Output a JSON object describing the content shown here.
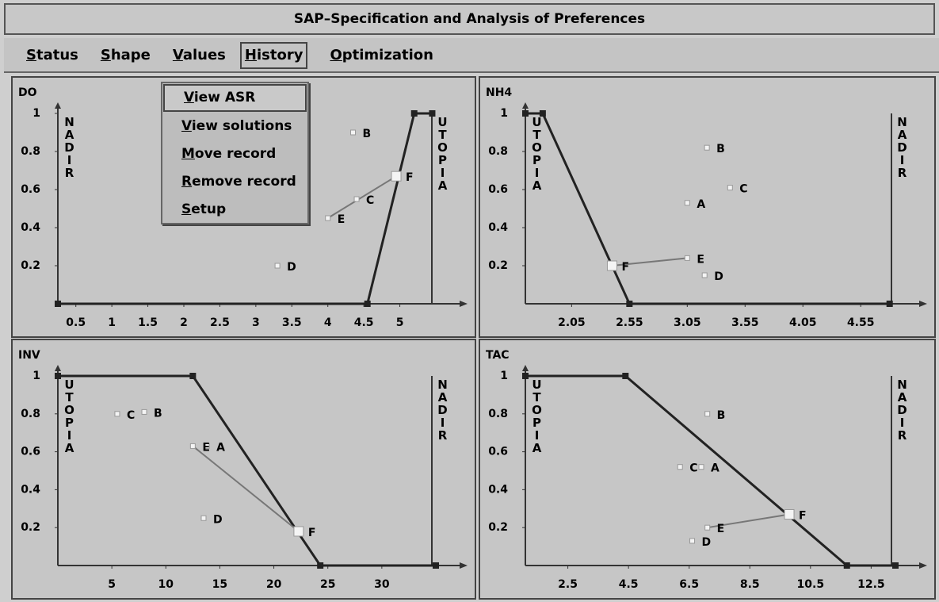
{
  "window": {
    "title": "SAP–Specification and Analysis of Preferences"
  },
  "menu": [
    "Status",
    "Shape",
    "Values",
    "History",
    "Optimization"
  ],
  "dropdown": [
    "View ASR",
    "View solutions",
    "Move record",
    "Remove record",
    "Setup"
  ],
  "panels": [
    {
      "type": "scatter",
      "title": "DO",
      "xlim": [
        0.25,
        5.5
      ],
      "ylim": [
        0,
        1
      ],
      "xticks": [
        0.5,
        1,
        1.5,
        2,
        2.5,
        3,
        3.5,
        4,
        4.5,
        5
      ],
      "yticks": [
        0.2,
        0.4,
        0.6,
        0.8,
        1
      ],
      "left_label": "NADIR",
      "right_label": "UTOPIA",
      "curve": {
        "x": [
          0.25,
          4.55,
          5.2,
          5.45
        ],
        "y": [
          0,
          0,
          1,
          1
        ]
      },
      "points": [
        {
          "label": "B",
          "x": 4.35,
          "y": 0.9
        },
        {
          "label": "C",
          "x": 4.4,
          "y": 0.55
        },
        {
          "label": "D",
          "x": 3.3,
          "y": 0.2
        },
        {
          "label": "E",
          "x": 4.0,
          "y": 0.45
        },
        {
          "label": "F",
          "x": 4.95,
          "y": 0.67
        }
      ]
    },
    {
      "type": "scatter",
      "title": "NH4",
      "xlim": [
        1.65,
        4.85
      ],
      "ylim": [
        0,
        1
      ],
      "xticks": [
        2.05,
        2.55,
        3.05,
        3.55,
        4.05,
        4.55
      ],
      "yticks": [
        0.2,
        0.4,
        0.6,
        0.8,
        1
      ],
      "left_label": "UTOPIA",
      "right_label": "NADIR",
      "curve": {
        "x": [
          1.65,
          1.8,
          2.55,
          4.8
        ],
        "y": [
          1,
          1,
          0,
          0
        ]
      },
      "points": [
        {
          "label": "B",
          "x": 3.22,
          "y": 0.82
        },
        {
          "label": "C",
          "x": 3.42,
          "y": 0.61
        },
        {
          "label": "A",
          "x": 3.05,
          "y": 0.53
        },
        {
          "label": "D",
          "x": 3.2,
          "y": 0.15
        },
        {
          "label": "E",
          "x": 3.05,
          "y": 0.24
        },
        {
          "label": "F",
          "x": 2.4,
          "y": 0.2
        }
      ]
    },
    {
      "type": "scatter",
      "title": "INV",
      "xlim": [
        0,
        35
      ],
      "ylim": [
        0,
        1
      ],
      "xticks": [
        5,
        10,
        15,
        20,
        25,
        30
      ],
      "yticks": [
        0.2,
        0.4,
        0.6,
        0.8,
        1
      ],
      "left_label": "UTOPIA",
      "right_label": "NADIR",
      "curve": {
        "x": [
          0,
          12.5,
          24.3,
          35
        ],
        "y": [
          1,
          1,
          0,
          0
        ]
      },
      "points": [
        {
          "label": "C",
          "x": 5.5,
          "y": 0.8
        },
        {
          "label": "B",
          "x": 8,
          "y": 0.81
        },
        {
          "label": "A",
          "x": 13.8,
          "y": 0.63
        },
        {
          "label": "D",
          "x": 13.5,
          "y": 0.25
        },
        {
          "label": "E",
          "x": 12.5,
          "y": 0.63
        },
        {
          "label": "F",
          "x": 22.3,
          "y": 0.18
        }
      ]
    },
    {
      "type": "scatter",
      "title": "TAC",
      "xlim": [
        1.1,
        13.3
      ],
      "ylim": [
        0,
        1
      ],
      "xticks": [
        2.5,
        4.5,
        6.5,
        8.5,
        10.5,
        12.5
      ],
      "yticks": [
        0.2,
        0.4,
        0.6,
        0.8,
        1
      ],
      "left_label": "UTOPIA",
      "right_label": "NADIR",
      "curve": {
        "x": [
          1.1,
          4.4,
          11.7,
          13.3
        ],
        "y": [
          1,
          1,
          0,
          0
        ]
      },
      "points": [
        {
          "label": "B",
          "x": 7.1,
          "y": 0.8
        },
        {
          "label": "C",
          "x": 6.2,
          "y": 0.52
        },
        {
          "label": "A",
          "x": 6.9,
          "y": 0.52
        },
        {
          "label": "D",
          "x": 6.6,
          "y": 0.13
        },
        {
          "label": "E",
          "x": 7.1,
          "y": 0.2
        },
        {
          "label": "F",
          "x": 9.8,
          "y": 0.27
        }
      ]
    }
  ]
}
